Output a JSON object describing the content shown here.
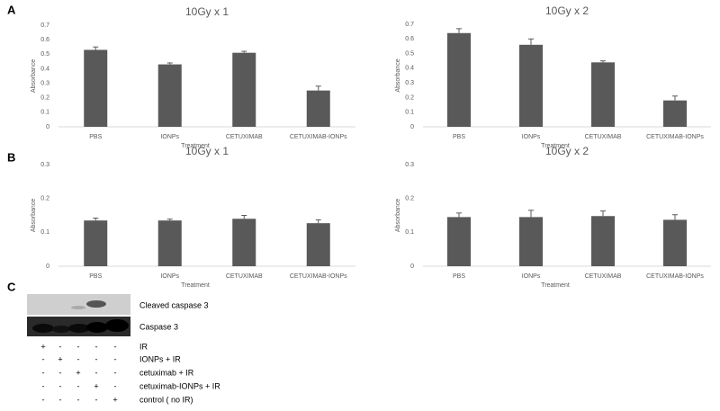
{
  "panels": [
    "A",
    "B",
    "C"
  ],
  "chart_data": [
    {
      "type": "bar",
      "title": "10Gy x 1",
      "xlabel": "Treatment",
      "ylabel": "Absorbance",
      "color": "#595959",
      "categories": [
        "PBS",
        "IONPs",
        "CETUXIMAB",
        "CETUXIMAB-IONPs"
      ],
      "values": [
        0.53,
        0.43,
        0.51,
        0.25
      ],
      "errors": [
        0.02,
        0.01,
        0.01,
        0.03
      ],
      "ylim": [
        0,
        0.7
      ],
      "yticks": [
        0,
        0.1,
        0.2,
        0.3,
        0.4,
        0.5,
        0.6,
        0.7
      ]
    },
    {
      "type": "bar",
      "title": "10Gy x 2",
      "xlabel": "Treatment",
      "ylabel": "Absorbance",
      "color": "#595959",
      "categories": [
        "PBS",
        "IONPs",
        "CETUXIMAB",
        "CETUXIMAB-IONPs"
      ],
      "values": [
        0.64,
        0.56,
        0.44,
        0.18
      ],
      "errors": [
        0.03,
        0.04,
        0.01,
        0.03
      ],
      "ylim": [
        0,
        0.7
      ],
      "yticks": [
        0,
        0.1,
        0.2,
        0.3,
        0.4,
        0.5,
        0.6,
        0.7
      ]
    },
    {
      "type": "bar",
      "title": "10Gy x 1",
      "xlabel": "Treatment",
      "ylabel": "Absorbance",
      "color": "#595959",
      "categories": [
        "PBS",
        "IONPs",
        "CETUXIMAB",
        "CETUXIMAB-IONPs"
      ],
      "values": [
        0.135,
        0.135,
        0.14,
        0.127
      ],
      "errors": [
        0.007,
        0.004,
        0.01,
        0.01
      ],
      "ylim": [
        0,
        0.3
      ],
      "yticks": [
        0,
        0.1,
        0.2,
        0.3
      ]
    },
    {
      "type": "bar",
      "title": "10Gy x 2",
      "xlabel": "Treatment",
      "ylabel": "Absorbance",
      "color": "#595959",
      "categories": [
        "PBS",
        "IONPs",
        "CETUXIMAB",
        "CETUXIMAB-IONPs"
      ],
      "values": [
        0.145,
        0.145,
        0.148,
        0.137
      ],
      "errors": [
        0.012,
        0.02,
        0.015,
        0.015
      ],
      "ylim": [
        0,
        0.3
      ],
      "yticks": [
        0,
        0.1,
        0.2,
        0.3
      ]
    }
  ],
  "blot": {
    "bands": [
      "Cleaved caspase 3",
      "Caspase 3"
    ],
    "rows": [
      {
        "signs": [
          "+",
          "-",
          "-",
          "-",
          "-"
        ],
        "label": "IR"
      },
      {
        "signs": [
          "-",
          "+",
          "-",
          "-",
          "-"
        ],
        "label": "IONPs + IR"
      },
      {
        "signs": [
          "-",
          "-",
          "+",
          "-",
          "-"
        ],
        "label": "cetuximab + IR"
      },
      {
        "signs": [
          "-",
          "-",
          "-",
          "+",
          "-"
        ],
        "label": "cetuximab-IONPs + IR"
      },
      {
        "signs": [
          "-",
          "-",
          "-",
          "-",
          "+"
        ],
        "label": "control ( no IR)"
      }
    ]
  }
}
